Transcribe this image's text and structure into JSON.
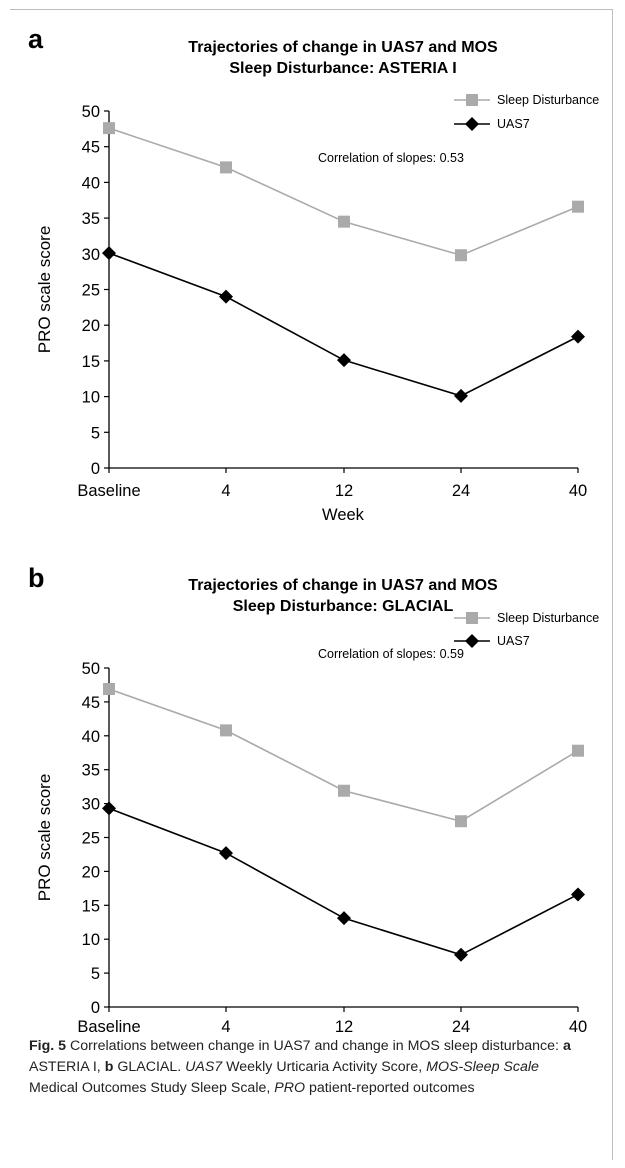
{
  "chart_data": [
    {
      "type": "line",
      "panel_label": "a",
      "title_line1": "Trajectories of change in UAS7 and MOS",
      "title_line2": "Sleep Disturbance: ASTERIA I",
      "xlabel": "Week",
      "ylabel": "PRO scale score",
      "categories": [
        "Baseline",
        "4",
        "12",
        "24",
        "40"
      ],
      "ylim": [
        0,
        50
      ],
      "yticks": [
        0,
        5,
        10,
        15,
        20,
        25,
        30,
        35,
        40,
        45,
        50
      ],
      "grid": false,
      "legend_position": "top-right",
      "annotation": "Correlation of slopes: 0.53",
      "series": [
        {
          "name": "Sleep Disturbance",
          "marker": "square",
          "color": "#aaaaaa",
          "values": [
            47.6,
            42.1,
            34.5,
            29.8,
            36.6
          ]
        },
        {
          "name": "UAS7",
          "marker": "diamond",
          "color": "#000000",
          "values": [
            30.1,
            24.0,
            15.1,
            10.1,
            18.4
          ]
        }
      ]
    },
    {
      "type": "line",
      "panel_label": "b",
      "title_line1": "Trajectories of change in UAS7 and MOS",
      "title_line2": "Sleep Disturbance: GLACIAL",
      "xlabel": "Week",
      "ylabel": "PRO scale score",
      "categories": [
        "Baseline",
        "4",
        "12",
        "24",
        "40"
      ],
      "ylim": [
        0,
        50
      ],
      "yticks": [
        0,
        5,
        10,
        15,
        20,
        25,
        30,
        35,
        40,
        45,
        50
      ],
      "grid": false,
      "legend_position": "top-right",
      "annotation": "Correlation of slopes: 0.59",
      "series": [
        {
          "name": "Sleep Disturbance",
          "marker": "square",
          "color": "#aaaaaa",
          "values": [
            46.9,
            40.8,
            31.9,
            27.4,
            37.8
          ]
        },
        {
          "name": "UAS7",
          "marker": "diamond",
          "color": "#000000",
          "values": [
            29.3,
            22.7,
            13.1,
            7.7,
            16.6
          ]
        }
      ]
    }
  ],
  "caption": {
    "fig_label": "Fig. 5",
    "text1": "  Correlations between change in UAS7 and change in MOS sleep disturbance: ",
    "a_label": "a",
    "text2": " ASTERIA I, ",
    "b_label": "b",
    "text3": " GLACIAL. ",
    "abbr1": "UAS7",
    "text4": " Weekly Urticaria Activity Score, ",
    "abbr2": "MOS-Sleep Scale",
    "text5": " Medical Outcomes Study Sleep Scale, ",
    "abbr3": "PRO",
    "text6": " patient-reported outcomes"
  }
}
